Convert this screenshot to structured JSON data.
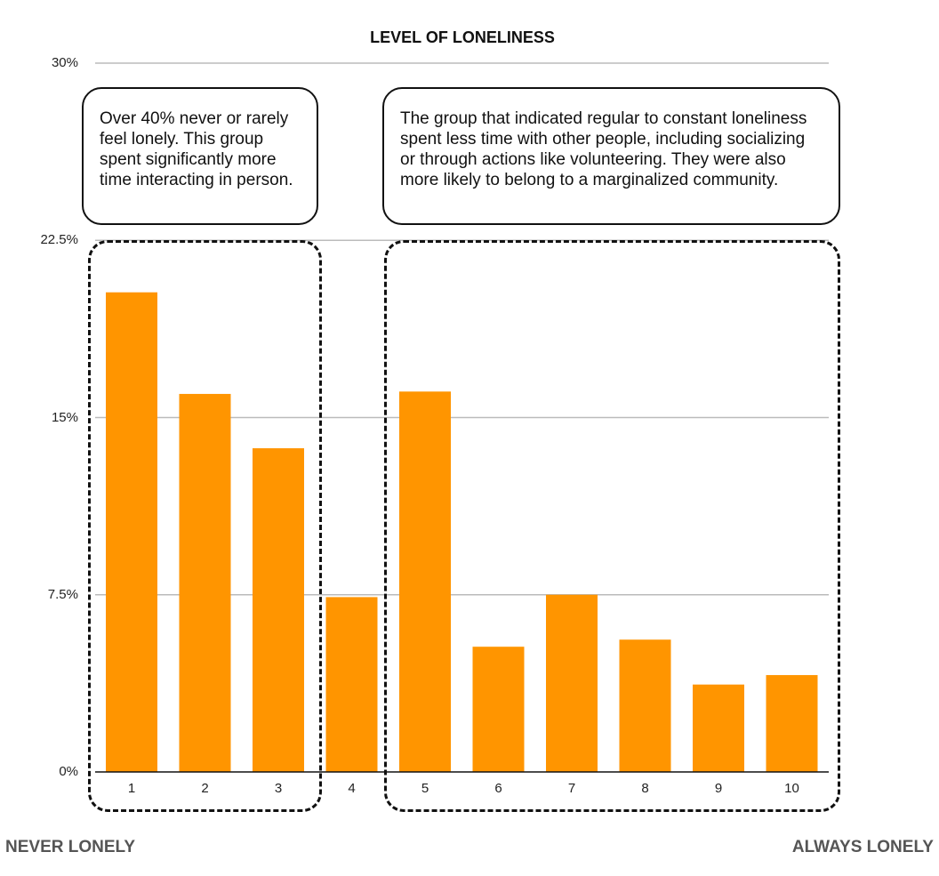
{
  "chart_data": {
    "type": "bar",
    "title": "LEVEL OF LONELINESS",
    "categories": [
      "1",
      "2",
      "3",
      "4",
      "5",
      "6",
      "7",
      "8",
      "9",
      "10"
    ],
    "values": [
      20.3,
      16.0,
      13.7,
      7.4,
      16.1,
      5.3,
      7.5,
      5.6,
      3.7,
      4.1
    ],
    "ylim": [
      0,
      30
    ],
    "yticks": [
      "0%",
      "7.5%",
      "15%",
      "22.5%",
      "30%"
    ],
    "ytick_values": [
      0,
      7.5,
      15,
      22.5,
      30
    ],
    "grid": true,
    "bar_color": "#ff9500",
    "xlabel_left": "NEVER LONELY",
    "xlabel_right": "ALWAYS LONELY",
    "annotations": [
      "Over 40% never or rarely feel lonely. This group spent significantly more time interacting in person.",
      "The group that indicated regular to constant loneliness spent less time with other people, including socializing or through actions like volunteering. They were also more likely to belong to a marginalized community."
    ]
  }
}
